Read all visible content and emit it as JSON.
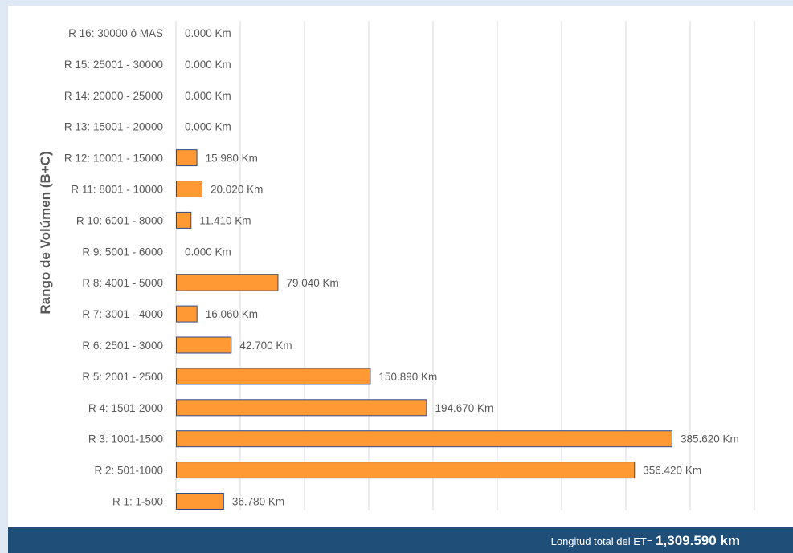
{
  "chart_data": {
    "type": "bar",
    "orientation": "horizontal",
    "title": "",
    "xlabel": "",
    "ylabel": "Rango de Volúmen (B+C)",
    "categories": [
      "R 16: 30000 ó MAS",
      "R 15: 25001 - 30000",
      "R 14: 20000 - 25000",
      "R 13: 15001 - 20000",
      "R 12: 10001 - 15000",
      "R 11: 8001 - 10000",
      "R 10: 6001 - 8000",
      "R 9: 5001 - 6000",
      "R 8: 4001 - 5000",
      "R 7: 3001 - 4000",
      "R 6: 2501 - 3000",
      "R 5: 2001 - 2500",
      "R 4: 1501-2000",
      "R 3: 1001-1500",
      "R 2: 501-1000",
      "R 1: 1-500"
    ],
    "values": [
      0.0,
      0.0,
      0.0,
      0.0,
      15.98,
      20.02,
      11.41,
      0.0,
      79.04,
      16.06,
      42.7,
      150.89,
      194.67,
      385.62,
      356.42,
      36.78
    ],
    "value_labels": [
      "0.000 Km",
      "0.000 Km",
      "0.000 Km",
      "0.000 Km",
      "15.980 Km",
      "20.020 Km",
      "11.410 Km",
      "0.000 Km",
      "79.040 Km",
      "16.060 Km",
      "42.700 Km",
      "150.890 Km",
      "194.670 Km",
      "385.620 Km",
      "356.420 Km",
      "36.780 Km"
    ],
    "xlim": [
      0,
      450
    ],
    "x_gridline_step": 50,
    "grid": "vertical",
    "legend": "none",
    "colors": {
      "bar": "#ff9933",
      "bar_border": "#2e4c8a",
      "grid": "#d9d9d9",
      "text": "#595959"
    }
  },
  "footer": {
    "label": "Longitud total del ET=",
    "value": "1,309.590 km"
  }
}
